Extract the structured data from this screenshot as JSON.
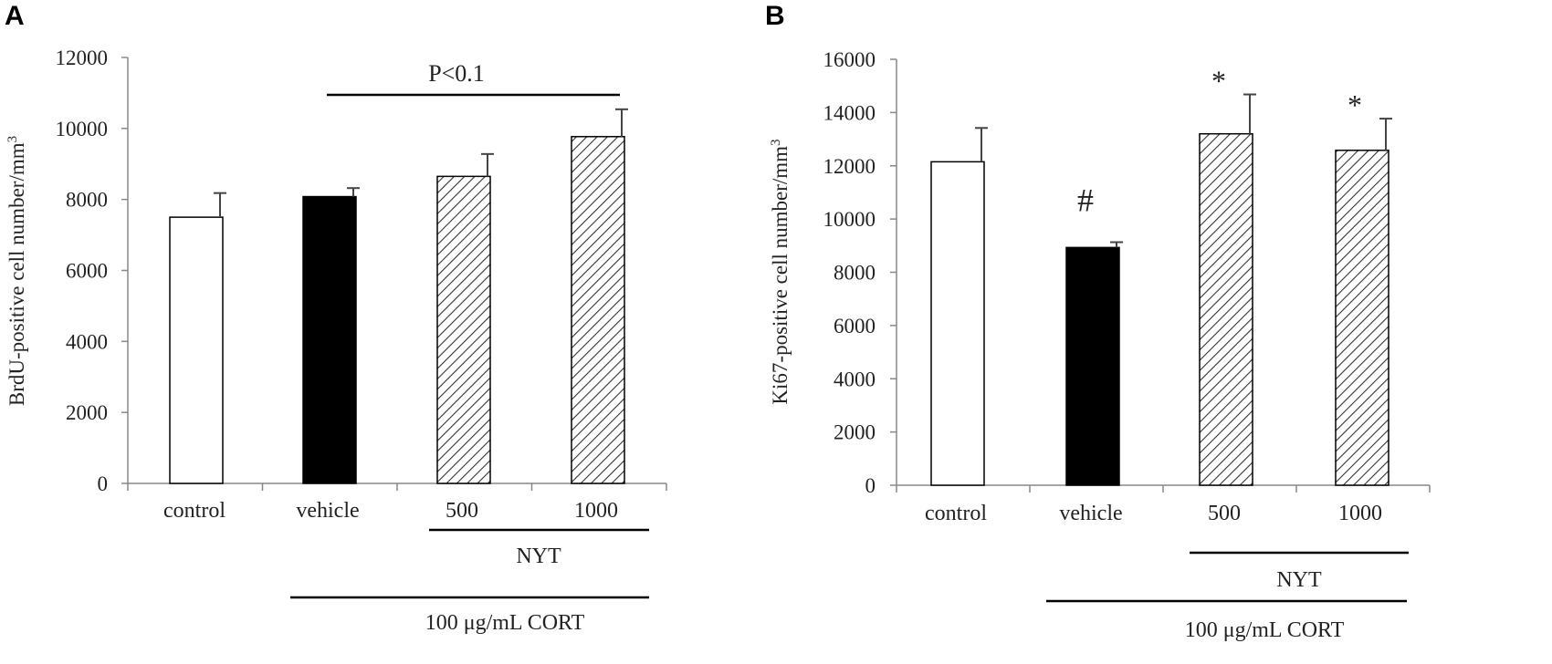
{
  "chart_data": [
    {
      "panel": "A",
      "type": "bar",
      "categories": [
        "control",
        "vehicle",
        "500",
        "1000"
      ],
      "values": [
        7500,
        8080,
        8650,
        9770
      ],
      "errors": [
        680,
        240,
        630,
        770
      ],
      "fills": [
        "white",
        "black",
        "hatched",
        "hatched"
      ],
      "ylabel": "BrdU-positive cell number/mm",
      "ylabel_sup": "3",
      "ylim": [
        0,
        12000
      ],
      "yticks": [
        "0",
        "2000",
        "4000",
        "6000",
        "8000",
        "10000",
        "12000"
      ],
      "ystep": 2000,
      "significance": {
        "text": "P<0.1",
        "from": "vehicle",
        "to": "1000"
      },
      "group_labels": {
        "nyt": "NYT",
        "cort": "100 μg/mL CORT"
      }
    },
    {
      "panel": "B",
      "type": "bar",
      "categories": [
        "control",
        "vehicle",
        "500",
        "1000"
      ],
      "values": [
        12150,
        8930,
        13200,
        12580
      ],
      "errors": [
        1270,
        200,
        1480,
        1190
      ],
      "fills": [
        "white",
        "black",
        "hatched",
        "hatched"
      ],
      "markers": [
        "",
        "#",
        "*",
        "*"
      ],
      "ylabel": "Ki67-positive  cell number/mm",
      "ylabel_sup": "3",
      "ylim": [
        0,
        16000
      ],
      "yticks": [
        "0",
        "2000",
        "4000",
        "6000",
        "8000",
        "10000",
        "12000",
        "14000",
        "16000"
      ],
      "ystep": 2000,
      "group_labels": {
        "nyt": "NYT",
        "cort": "100 μg/mL CORT"
      }
    }
  ]
}
